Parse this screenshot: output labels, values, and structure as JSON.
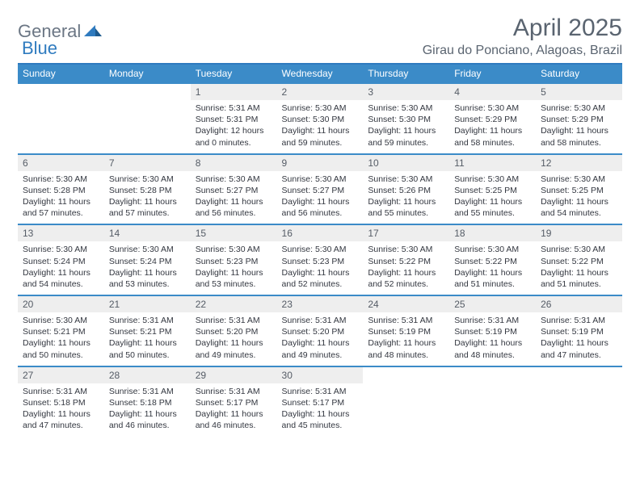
{
  "brand": {
    "part1": "General",
    "part2": "Blue"
  },
  "title": "April 2025",
  "location": "Girau do Ponciano, Alagoas, Brazil",
  "colors": {
    "header_bg": "#3b8bc8",
    "header_border": "#2f7bbf",
    "daynum_bg": "#eeeeee",
    "text_muted": "#5a6470",
    "text_body": "#333740",
    "brand_gray": "#6b7684",
    "brand_blue": "#2f7bbf"
  },
  "weekdays": [
    "Sunday",
    "Monday",
    "Tuesday",
    "Wednesday",
    "Thursday",
    "Friday",
    "Saturday"
  ],
  "weeks": [
    [
      null,
      null,
      {
        "n": "1",
        "sr": "5:31 AM",
        "ss": "5:31 PM",
        "dl": "12 hours and 0 minutes."
      },
      {
        "n": "2",
        "sr": "5:30 AM",
        "ss": "5:30 PM",
        "dl": "11 hours and 59 minutes."
      },
      {
        "n": "3",
        "sr": "5:30 AM",
        "ss": "5:30 PM",
        "dl": "11 hours and 59 minutes."
      },
      {
        "n": "4",
        "sr": "5:30 AM",
        "ss": "5:29 PM",
        "dl": "11 hours and 58 minutes."
      },
      {
        "n": "5",
        "sr": "5:30 AM",
        "ss": "5:29 PM",
        "dl": "11 hours and 58 minutes."
      }
    ],
    [
      {
        "n": "6",
        "sr": "5:30 AM",
        "ss": "5:28 PM",
        "dl": "11 hours and 57 minutes."
      },
      {
        "n": "7",
        "sr": "5:30 AM",
        "ss": "5:28 PM",
        "dl": "11 hours and 57 minutes."
      },
      {
        "n": "8",
        "sr": "5:30 AM",
        "ss": "5:27 PM",
        "dl": "11 hours and 56 minutes."
      },
      {
        "n": "9",
        "sr": "5:30 AM",
        "ss": "5:27 PM",
        "dl": "11 hours and 56 minutes."
      },
      {
        "n": "10",
        "sr": "5:30 AM",
        "ss": "5:26 PM",
        "dl": "11 hours and 55 minutes."
      },
      {
        "n": "11",
        "sr": "5:30 AM",
        "ss": "5:25 PM",
        "dl": "11 hours and 55 minutes."
      },
      {
        "n": "12",
        "sr": "5:30 AM",
        "ss": "5:25 PM",
        "dl": "11 hours and 54 minutes."
      }
    ],
    [
      {
        "n": "13",
        "sr": "5:30 AM",
        "ss": "5:24 PM",
        "dl": "11 hours and 54 minutes."
      },
      {
        "n": "14",
        "sr": "5:30 AM",
        "ss": "5:24 PM",
        "dl": "11 hours and 53 minutes."
      },
      {
        "n": "15",
        "sr": "5:30 AM",
        "ss": "5:23 PM",
        "dl": "11 hours and 53 minutes."
      },
      {
        "n": "16",
        "sr": "5:30 AM",
        "ss": "5:23 PM",
        "dl": "11 hours and 52 minutes."
      },
      {
        "n": "17",
        "sr": "5:30 AM",
        "ss": "5:22 PM",
        "dl": "11 hours and 52 minutes."
      },
      {
        "n": "18",
        "sr": "5:30 AM",
        "ss": "5:22 PM",
        "dl": "11 hours and 51 minutes."
      },
      {
        "n": "19",
        "sr": "5:30 AM",
        "ss": "5:22 PM",
        "dl": "11 hours and 51 minutes."
      }
    ],
    [
      {
        "n": "20",
        "sr": "5:30 AM",
        "ss": "5:21 PM",
        "dl": "11 hours and 50 minutes."
      },
      {
        "n": "21",
        "sr": "5:31 AM",
        "ss": "5:21 PM",
        "dl": "11 hours and 50 minutes."
      },
      {
        "n": "22",
        "sr": "5:31 AM",
        "ss": "5:20 PM",
        "dl": "11 hours and 49 minutes."
      },
      {
        "n": "23",
        "sr": "5:31 AM",
        "ss": "5:20 PM",
        "dl": "11 hours and 49 minutes."
      },
      {
        "n": "24",
        "sr": "5:31 AM",
        "ss": "5:19 PM",
        "dl": "11 hours and 48 minutes."
      },
      {
        "n": "25",
        "sr": "5:31 AM",
        "ss": "5:19 PM",
        "dl": "11 hours and 48 minutes."
      },
      {
        "n": "26",
        "sr": "5:31 AM",
        "ss": "5:19 PM",
        "dl": "11 hours and 47 minutes."
      }
    ],
    [
      {
        "n": "27",
        "sr": "5:31 AM",
        "ss": "5:18 PM",
        "dl": "11 hours and 47 minutes."
      },
      {
        "n": "28",
        "sr": "5:31 AM",
        "ss": "5:18 PM",
        "dl": "11 hours and 46 minutes."
      },
      {
        "n": "29",
        "sr": "5:31 AM",
        "ss": "5:17 PM",
        "dl": "11 hours and 46 minutes."
      },
      {
        "n": "30",
        "sr": "5:31 AM",
        "ss": "5:17 PM",
        "dl": "11 hours and 45 minutes."
      },
      null,
      null,
      null
    ]
  ],
  "labels": {
    "sunrise": "Sunrise:",
    "sunset": "Sunset:",
    "daylight": "Daylight:"
  }
}
